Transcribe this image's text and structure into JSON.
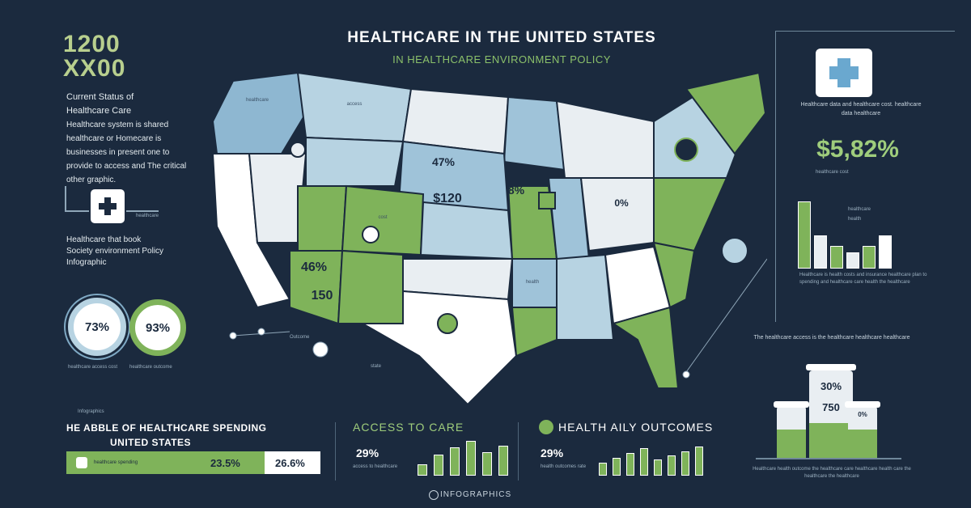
{
  "header": {
    "title": "HEALTHCARE IN THE UNITED STATES",
    "subtitle": "IN HEALTHCARE ENVIRONMENT POLICY"
  },
  "left": {
    "big_number_line1": "1200",
    "big_number_line2": "XX00",
    "intro_heading_1": "Current Status of",
    "intro_heading_2": "Healthcare Care",
    "intro_body": "Healthcare system is shared healthcare or Homecare is businesses in present one to provide to access and The critical other graphic.",
    "kit_caption": "healthcare",
    "policy_text_1": "Healthcare that book",
    "policy_text_2": "Society environment Policy",
    "policy_text_3": "Infographic",
    "ring1_value": "73%",
    "ring2_value": "93%",
    "ring1_caption": "healthcare access cost",
    "ring2_caption": "healthcare outcome"
  },
  "spending": {
    "kicker": "Infographics",
    "title_line1": "HE ABBLE OF HEALTHCARE SPENDING",
    "title_line2": "UNITED STATES",
    "bar_caption": "healthcare spending",
    "value_1": "23.5%",
    "value_2": "26.6%",
    "fill_fraction": 0.78
  },
  "map": {
    "labels": [
      "47%",
      "$120",
      "8%",
      "46%",
      "150",
      "0%"
    ],
    "state_labels": [
      "healthcare",
      "access",
      "cost",
      "health"
    ],
    "callout_caption": "Outcome",
    "callout_caption_2": "state"
  },
  "access": {
    "title": "ACCESS TO CARE",
    "pct": "29%",
    "caption": "access to healthcare",
    "bars": [
      0.3,
      0.55,
      0.72,
      0.9,
      0.6,
      0.78
    ]
  },
  "outcomes": {
    "title": "HEALTH AILY OUTCOMES",
    "pct": "29%",
    "caption": "health outcomes rate",
    "bars": [
      0.4,
      0.55,
      0.7,
      0.85,
      0.5,
      0.62,
      0.74,
      0.9
    ]
  },
  "footer": {
    "label": "INFOGRAPHICS"
  },
  "right": {
    "lines": "Healthcare data and healthcare cost. healthcare data healthcare",
    "value": "$5,82%",
    "value_caption": "healthcare cost",
    "chart_labels": [
      "healthcare",
      "health"
    ],
    "chart_bars": [
      0.9,
      0.45,
      0.3,
      0.22,
      0.3,
      0.45
    ],
    "notes": "Healthcare is health costs and insurance healthcare plan to spending and healthcare care health the healthcare",
    "text2": "The healthcare access is the healthcare healthcare healthcare",
    "jar_1": "30%",
    "jar_2": "750",
    "jar_3": "0%",
    "jar_caption": "Healthcare health outcome the healthcare care healthcare health care the healthcare the healthcare"
  },
  "colors": {
    "background": "#1b2a3e",
    "accent_green": "#7fb35a",
    "accent_blue": "#7fa9c4",
    "light_blue": "#b7d3e2",
    "white": "#ffffff"
  }
}
